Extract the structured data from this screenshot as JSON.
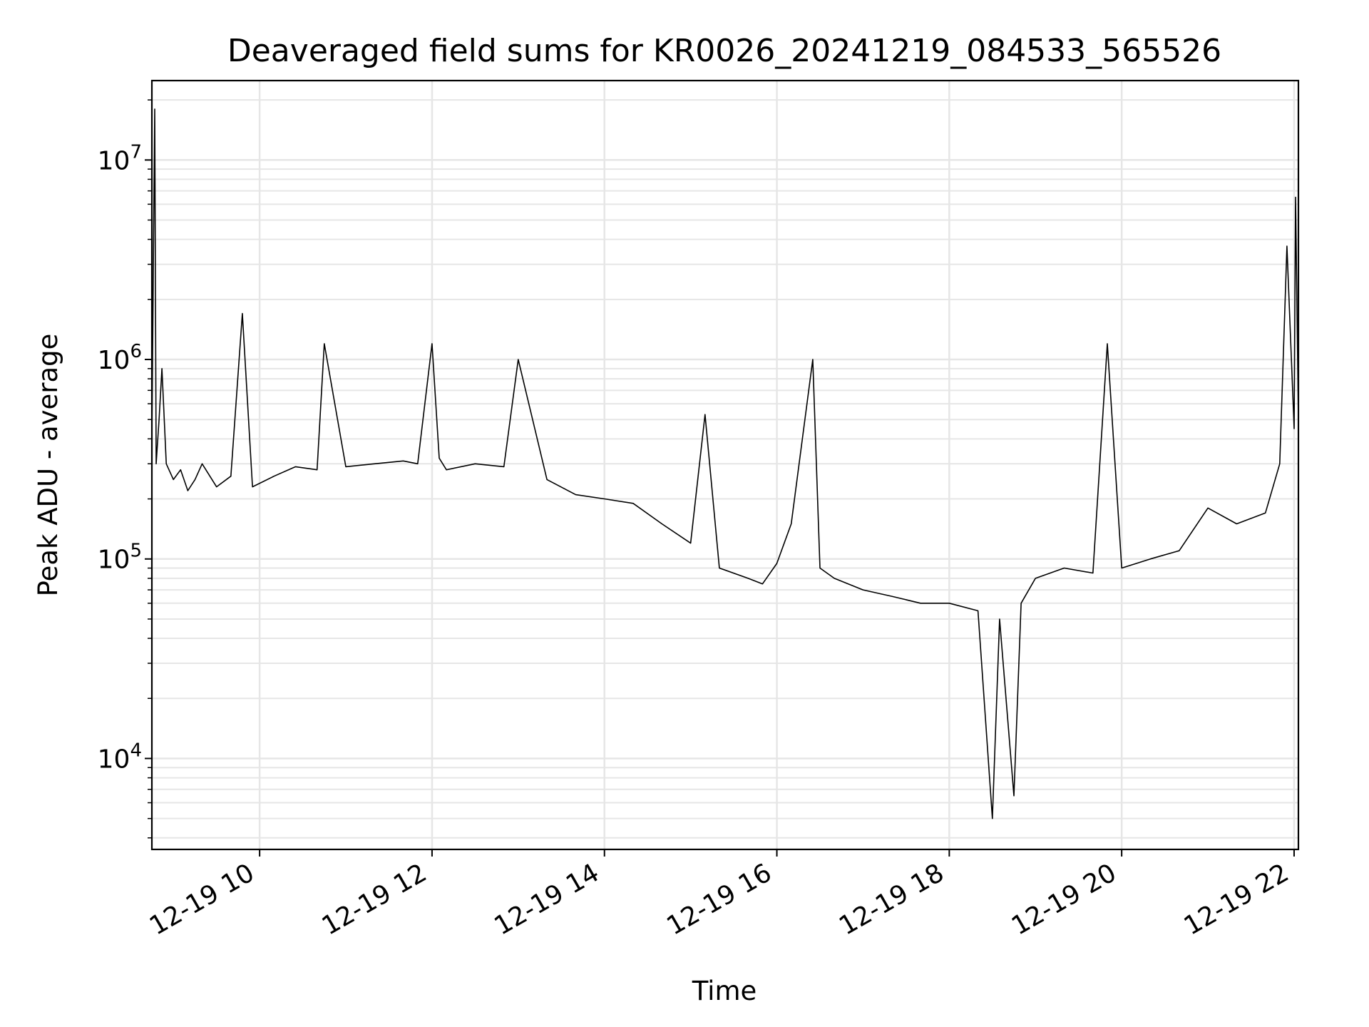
{
  "chart_data": {
    "type": "line",
    "title": "Deaveraged field sums for KR0026_20241219_084533_565526",
    "xlabel": "Time",
    "ylabel": "Peak ADU - average",
    "yscale": "log",
    "xlim": [
      "2024-12-19 08:45",
      "2024-12-19 22:03"
    ],
    "ylim": [
      3500,
      25000000
    ],
    "grid": true,
    "line_color": "#000000",
    "grid_color": "#e6e6e6",
    "x_ticks": [
      {
        "label": "12-19 10",
        "time": "2024-12-19 10:00"
      },
      {
        "label": "12-19 12",
        "time": "2024-12-19 12:00"
      },
      {
        "label": "12-19 14",
        "time": "2024-12-19 14:00"
      },
      {
        "label": "12-19 16",
        "time": "2024-12-19 16:00"
      },
      {
        "label": "12-19 18",
        "time": "2024-12-19 18:00"
      },
      {
        "label": "12-19 20",
        "time": "2024-12-19 20:00"
      },
      {
        "label": "12-19 22",
        "time": "2024-12-19 22:00"
      }
    ],
    "y_ticks": [
      {
        "base": "10",
        "exp": "4",
        "value": 10000
      },
      {
        "base": "10",
        "exp": "5",
        "value": 100000
      },
      {
        "base": "10",
        "exp": "6",
        "value": 1000000
      },
      {
        "base": "10",
        "exp": "7",
        "value": 10000000
      }
    ],
    "series": [
      {
        "x": [
          "2024-12-19 08:45",
          "2024-12-19 08:47",
          "2024-12-19 08:48",
          "2024-12-19 08:50",
          "2024-12-19 08:52",
          "2024-12-19 08:55",
          "2024-12-19 09:00",
          "2024-12-19 09:05",
          "2024-12-19 09:10",
          "2024-12-19 09:15",
          "2024-12-19 09:20",
          "2024-12-19 09:30",
          "2024-12-19 09:40",
          "2024-12-19 09:48",
          "2024-12-19 09:55",
          "2024-12-19 10:10",
          "2024-12-19 10:25",
          "2024-12-19 10:40",
          "2024-12-19 10:45",
          "2024-12-19 11:00",
          "2024-12-19 11:20",
          "2024-12-19 11:40",
          "2024-12-19 11:50",
          "2024-12-19 12:00",
          "2024-12-19 12:05",
          "2024-12-19 12:10",
          "2024-12-19 12:30",
          "2024-12-19 12:50",
          "2024-12-19 13:00",
          "2024-12-19 13:20",
          "2024-12-19 13:40",
          "2024-12-19 14:00",
          "2024-12-19 14:20",
          "2024-12-19 14:40",
          "2024-12-19 15:00",
          "2024-12-19 15:10",
          "2024-12-19 15:20",
          "2024-12-19 15:40",
          "2024-12-19 15:50",
          "2024-12-19 16:00",
          "2024-12-19 16:10",
          "2024-12-19 16:25",
          "2024-12-19 16:30",
          "2024-12-19 16:40",
          "2024-12-19 17:00",
          "2024-12-19 17:20",
          "2024-12-19 17:40",
          "2024-12-19 18:00",
          "2024-12-19 18:20",
          "2024-12-19 18:30",
          "2024-12-19 18:35",
          "2024-12-19 18:45",
          "2024-12-19 18:50",
          "2024-12-19 19:00",
          "2024-12-19 19:20",
          "2024-12-19 19:40",
          "2024-12-19 19:50",
          "2024-12-19 20:00",
          "2024-12-19 20:20",
          "2024-12-19 20:40",
          "2024-12-19 21:00",
          "2024-12-19 21:20",
          "2024-12-19 21:40",
          "2024-12-19 21:50",
          "2024-12-19 21:55",
          "2024-12-19 22:00",
          "2024-12-19 22:01",
          "2024-12-19 22:03"
        ],
        "y": [
          400000,
          18000000,
          300000,
          500000,
          900000,
          300000,
          250000,
          280000,
          220000,
          250000,
          300000,
          230000,
          260000,
          1700000,
          230000,
          260000,
          290000,
          280000,
          1200000,
          290000,
          300000,
          310000,
          300000,
          1200000,
          320000,
          280000,
          300000,
          290000,
          1000000,
          250000,
          210000,
          200000,
          190000,
          150000,
          120000,
          530000,
          90000,
          80000,
          75000,
          95000,
          150000,
          1000000,
          90000,
          80000,
          70000,
          65000,
          60000,
          60000,
          55000,
          5000,
          50000,
          6500,
          60000,
          80000,
          90000,
          85000,
          1200000,
          90000,
          100000,
          110000,
          180000,
          150000,
          170000,
          300000,
          3700000,
          450000,
          6500000,
          500000
        ]
      }
    ]
  }
}
